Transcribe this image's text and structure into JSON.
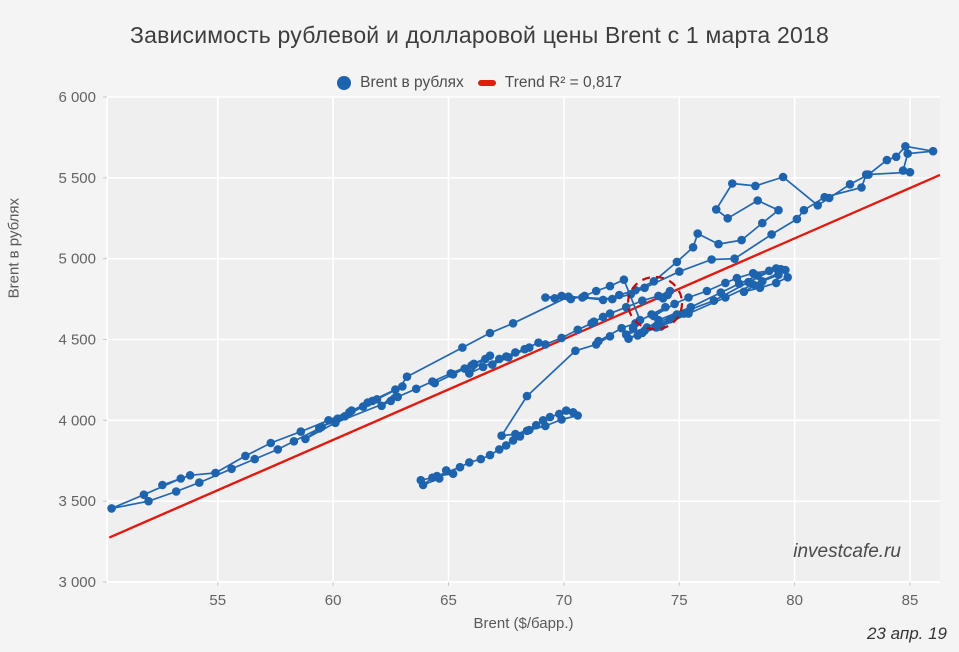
{
  "title": "Зависимость рублевой и долларовой цены Brent с 1 марта 2018",
  "legend": {
    "series_label": "Brent в рублях",
    "trend_label": "Trend R² = 0,817"
  },
  "watermark": "investcafe.ru",
  "date_note": "23 апр. 19",
  "colors": {
    "page_bg": "#f4f4f5",
    "plot_bg": "#efeff0",
    "grid": "#ffffff",
    "point_blue": "#1d63ae",
    "line_blue": "#2267b1",
    "trend_red": "#e01b10",
    "annotation_red": "#c00a0a",
    "tick_text": "#636363",
    "title_text": "#3d3d3d"
  },
  "chart_data": {
    "type": "scatter",
    "subtype": "connected-scatter",
    "title": "Зависимость рублевой и долларовой цены Brent с 1 марта 2018",
    "xlabel": "Brent ($/барр.)",
    "ylabel": "Brent в рублях",
    "xlim": [
      50.2,
      86.3
    ],
    "ylim": [
      3000,
      6000
    ],
    "grid": true,
    "legend_position": "top-center",
    "x_ticks": [
      {
        "v": 55,
        "label": "55"
      },
      {
        "v": 60,
        "label": "60"
      },
      {
        "v": 65,
        "label": "65"
      },
      {
        "v": 70,
        "label": "70"
      },
      {
        "v": 75,
        "label": "75"
      },
      {
        "v": 80,
        "label": "80"
      },
      {
        "v": 85,
        "label": "85"
      }
    ],
    "y_ticks": [
      {
        "v": 3000,
        "label": "3 000"
      },
      {
        "v": 3500,
        "label": "3 500"
      },
      {
        "v": 4000,
        "label": "4 000"
      },
      {
        "v": 4500,
        "label": "4 500"
      },
      {
        "v": 5000,
        "label": "5 000"
      },
      {
        "v": 5500,
        "label": "5 500"
      },
      {
        "v": 6000,
        "label": "6 000"
      }
    ],
    "series": [
      {
        "name": "Brent в рублях",
        "marker": "circle",
        "connected": true,
        "points": [
          [
            63.8,
            3630
          ],
          [
            64.3,
            3645
          ],
          [
            63.9,
            3600
          ],
          [
            64.6,
            3640
          ],
          [
            64.9,
            3690
          ],
          [
            65.2,
            3670
          ],
          [
            64.5,
            3655
          ],
          [
            65.5,
            3710
          ],
          [
            65.9,
            3740
          ],
          [
            66.4,
            3760
          ],
          [
            66.8,
            3785
          ],
          [
            67.2,
            3820
          ],
          [
            67.5,
            3845
          ],
          [
            67.8,
            3875
          ],
          [
            68.1,
            3900
          ],
          [
            68.4,
            3935
          ],
          [
            68.8,
            3970
          ],
          [
            69.1,
            4000
          ],
          [
            69.4,
            4020
          ],
          [
            69.8,
            4040
          ],
          [
            70.1,
            4060
          ],
          [
            70.4,
            4050
          ],
          [
            70.6,
            4030
          ],
          [
            69.9,
            4005
          ],
          [
            69.2,
            3965
          ],
          [
            68.5,
            3940
          ],
          [
            67.9,
            3915
          ],
          [
            67.3,
            3905
          ],
          [
            68.4,
            4150
          ],
          [
            70.5,
            4430
          ],
          [
            71.4,
            4470
          ],
          [
            72.0,
            4520
          ],
          [
            71.5,
            4490
          ],
          [
            72.5,
            4570
          ],
          [
            73.1,
            4600
          ],
          [
            73.8,
            4655
          ],
          [
            74.4,
            4700
          ],
          [
            73.9,
            4645
          ],
          [
            74.8,
            4720
          ],
          [
            75.4,
            4760
          ],
          [
            76.2,
            4800
          ],
          [
            77.0,
            4850
          ],
          [
            77.5,
            4880
          ],
          [
            78.2,
            4910
          ],
          [
            78.9,
            4925
          ],
          [
            79.4,
            4935
          ],
          [
            79.7,
            4885
          ],
          [
            79.2,
            4850
          ],
          [
            78.5,
            4820
          ],
          [
            77.8,
            4795
          ],
          [
            78.6,
            4860
          ],
          [
            79.3,
            4900
          ],
          [
            79.6,
            4930
          ],
          [
            78.2,
            4840
          ],
          [
            77.0,
            4760
          ],
          [
            75.4,
            4660
          ],
          [
            74.2,
            4580
          ],
          [
            73.4,
            4540
          ],
          [
            72.8,
            4505
          ],
          [
            73.5,
            4555
          ],
          [
            74.6,
            4625
          ],
          [
            75.2,
            4660
          ],
          [
            74.0,
            4575
          ],
          [
            73.2,
            4525
          ],
          [
            74.1,
            4620
          ],
          [
            75.5,
            4700
          ],
          [
            76.8,
            4790
          ],
          [
            77.6,
            4845
          ],
          [
            78.4,
            4895
          ],
          [
            79.2,
            4940
          ],
          [
            78.0,
            4855
          ],
          [
            76.5,
            4740
          ],
          [
            74.9,
            4655
          ],
          [
            73.6,
            4575
          ],
          [
            72.7,
            4530
          ],
          [
            73.0,
            4570
          ],
          [
            73.3,
            4620
          ],
          [
            72.6,
            4870
          ],
          [
            72.0,
            4830
          ],
          [
            71.4,
            4800
          ],
          [
            70.9,
            4770
          ],
          [
            70.3,
            4750
          ],
          [
            69.6,
            4755
          ],
          [
            69.2,
            4760
          ],
          [
            69.9,
            4770
          ],
          [
            70.8,
            4760
          ],
          [
            71.7,
            4745
          ],
          [
            72.4,
            4775
          ],
          [
            73.1,
            4805
          ],
          [
            73.9,
            4860
          ],
          [
            74.9,
            4980
          ],
          [
            75.6,
            5070
          ],
          [
            75.8,
            5155
          ],
          [
            76.7,
            5090
          ],
          [
            77.7,
            5115
          ],
          [
            78.6,
            5220
          ],
          [
            79.3,
            5300
          ],
          [
            78.4,
            5360
          ],
          [
            77.1,
            5250
          ],
          [
            76.6,
            5305
          ],
          [
            77.3,
            5465
          ],
          [
            78.3,
            5450
          ],
          [
            79.5,
            5505
          ],
          [
            81.0,
            5330
          ],
          [
            81.5,
            5375
          ],
          [
            82.4,
            5460
          ],
          [
            83.2,
            5520
          ],
          [
            84.0,
            5610
          ],
          [
            84.4,
            5630
          ],
          [
            84.8,
            5695
          ],
          [
            86.0,
            5665
          ],
          [
            84.9,
            5650
          ],
          [
            84.7,
            5545
          ],
          [
            85.0,
            5535
          ],
          [
            83.1,
            5520
          ],
          [
            82.9,
            5440
          ],
          [
            81.3,
            5380
          ],
          [
            80.4,
            5300
          ],
          [
            80.1,
            5245
          ],
          [
            79.0,
            5150
          ],
          [
            77.4,
            5000
          ],
          [
            76.4,
            4995
          ],
          [
            75.0,
            4920
          ],
          [
            73.5,
            4820
          ],
          [
            72.9,
            4780
          ],
          [
            72.1,
            4750
          ],
          [
            70.2,
            4765
          ],
          [
            67.8,
            4600
          ],
          [
            66.8,
            4540
          ],
          [
            65.6,
            4450
          ],
          [
            63.2,
            4270
          ],
          [
            62.5,
            4120
          ],
          [
            60.1,
            3985
          ],
          [
            58.8,
            3885
          ],
          [
            59.5,
            3960
          ],
          [
            60.5,
            4025
          ],
          [
            61.3,
            4085
          ],
          [
            60.2,
            4010
          ],
          [
            59.4,
            3950
          ],
          [
            58.3,
            3870
          ],
          [
            57.6,
            3820
          ],
          [
            56.6,
            3760
          ],
          [
            55.6,
            3700
          ],
          [
            54.2,
            3615
          ],
          [
            53.2,
            3560
          ],
          [
            52.0,
            3500
          ],
          [
            50.4,
            3455
          ],
          [
            51.8,
            3540
          ],
          [
            53.4,
            3640
          ],
          [
            52.6,
            3600
          ],
          [
            53.8,
            3660
          ],
          [
            54.9,
            3675
          ],
          [
            56.2,
            3780
          ],
          [
            57.3,
            3860
          ],
          [
            58.6,
            3930
          ],
          [
            59.8,
            4000
          ],
          [
            60.8,
            4060
          ],
          [
            61.7,
            4120
          ],
          [
            62.7,
            4190
          ],
          [
            61.5,
            4110
          ],
          [
            60.7,
            4050
          ],
          [
            61.9,
            4130
          ],
          [
            63.0,
            4210
          ],
          [
            62.1,
            4090
          ],
          [
            62.8,
            4145
          ],
          [
            63.6,
            4195
          ],
          [
            64.3,
            4240
          ],
          [
            65.1,
            4290
          ],
          [
            66.1,
            4350
          ],
          [
            66.8,
            4400
          ],
          [
            66.0,
            4340
          ],
          [
            65.2,
            4285
          ],
          [
            64.4,
            4230
          ],
          [
            65.7,
            4320
          ],
          [
            66.6,
            4380
          ],
          [
            65.9,
            4290
          ],
          [
            66.5,
            4330
          ],
          [
            67.2,
            4380
          ],
          [
            67.9,
            4420
          ],
          [
            68.5,
            4450
          ],
          [
            67.6,
            4390
          ],
          [
            66.9,
            4345
          ],
          [
            67.5,
            4395
          ],
          [
            68.3,
            4440
          ],
          [
            68.9,
            4480
          ],
          [
            69.2,
            4470
          ],
          [
            69.9,
            4510
          ],
          [
            70.6,
            4560
          ],
          [
            71.2,
            4600
          ],
          [
            71.7,
            4640
          ],
          [
            71.3,
            4610
          ],
          [
            72.0,
            4660
          ],
          [
            72.7,
            4700
          ],
          [
            73.4,
            4740
          ],
          [
            74.1,
            4770
          ],
          [
            74.6,
            4800
          ],
          [
            74.3,
            4755
          ],
          [
            74.5,
            4775
          ]
        ]
      }
    ],
    "trend": {
      "name": "Trend R² = 0,817",
      "r_squared": "0,817",
      "x1": 50.3,
      "y1": 3275,
      "x2": 86.3,
      "y2": 5518
    },
    "annotation_circle": {
      "cx": 73.95,
      "cy": 4725,
      "rx": 1.17,
      "ry": 162,
      "style": "dashed"
    }
  }
}
